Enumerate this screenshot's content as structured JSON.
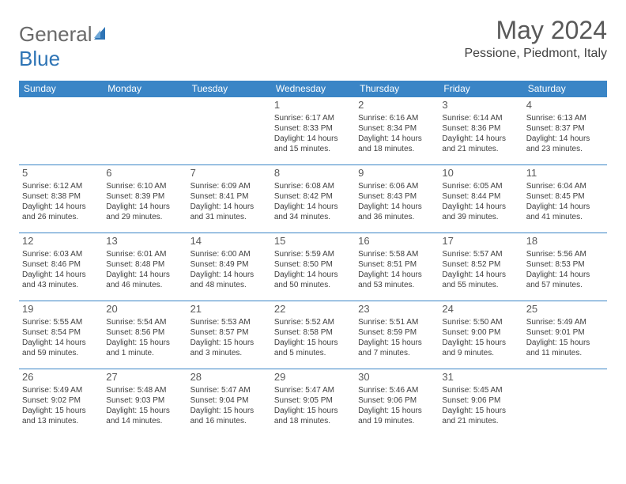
{
  "brand": {
    "part1": "General",
    "part2": "Blue"
  },
  "title": "May 2024",
  "subtitle": "Pessione, Piedmont, Italy",
  "colors": {
    "header_bg": "#3a85c6",
    "header_text": "#ffffff",
    "cell_border": "#3a85c6",
    "title_color": "#595959",
    "text_color": "#404040",
    "brand_gray": "#6a6a6a",
    "brand_blue": "#2e74b5"
  },
  "days": [
    "Sunday",
    "Monday",
    "Tuesday",
    "Wednesday",
    "Thursday",
    "Friday",
    "Saturday"
  ],
  "weeks": [
    [
      null,
      null,
      null,
      {
        "n": "1",
        "sr": "Sunrise: 6:17 AM",
        "ss": "Sunset: 8:33 PM",
        "d1": "Daylight: 14 hours",
        "d2": "and 15 minutes."
      },
      {
        "n": "2",
        "sr": "Sunrise: 6:16 AM",
        "ss": "Sunset: 8:34 PM",
        "d1": "Daylight: 14 hours",
        "d2": "and 18 minutes."
      },
      {
        "n": "3",
        "sr": "Sunrise: 6:14 AM",
        "ss": "Sunset: 8:36 PM",
        "d1": "Daylight: 14 hours",
        "d2": "and 21 minutes."
      },
      {
        "n": "4",
        "sr": "Sunrise: 6:13 AM",
        "ss": "Sunset: 8:37 PM",
        "d1": "Daylight: 14 hours",
        "d2": "and 23 minutes."
      }
    ],
    [
      {
        "n": "5",
        "sr": "Sunrise: 6:12 AM",
        "ss": "Sunset: 8:38 PM",
        "d1": "Daylight: 14 hours",
        "d2": "and 26 minutes."
      },
      {
        "n": "6",
        "sr": "Sunrise: 6:10 AM",
        "ss": "Sunset: 8:39 PM",
        "d1": "Daylight: 14 hours",
        "d2": "and 29 minutes."
      },
      {
        "n": "7",
        "sr": "Sunrise: 6:09 AM",
        "ss": "Sunset: 8:41 PM",
        "d1": "Daylight: 14 hours",
        "d2": "and 31 minutes."
      },
      {
        "n": "8",
        "sr": "Sunrise: 6:08 AM",
        "ss": "Sunset: 8:42 PM",
        "d1": "Daylight: 14 hours",
        "d2": "and 34 minutes."
      },
      {
        "n": "9",
        "sr": "Sunrise: 6:06 AM",
        "ss": "Sunset: 8:43 PM",
        "d1": "Daylight: 14 hours",
        "d2": "and 36 minutes."
      },
      {
        "n": "10",
        "sr": "Sunrise: 6:05 AM",
        "ss": "Sunset: 8:44 PM",
        "d1": "Daylight: 14 hours",
        "d2": "and 39 minutes."
      },
      {
        "n": "11",
        "sr": "Sunrise: 6:04 AM",
        "ss": "Sunset: 8:45 PM",
        "d1": "Daylight: 14 hours",
        "d2": "and 41 minutes."
      }
    ],
    [
      {
        "n": "12",
        "sr": "Sunrise: 6:03 AM",
        "ss": "Sunset: 8:46 PM",
        "d1": "Daylight: 14 hours",
        "d2": "and 43 minutes."
      },
      {
        "n": "13",
        "sr": "Sunrise: 6:01 AM",
        "ss": "Sunset: 8:48 PM",
        "d1": "Daylight: 14 hours",
        "d2": "and 46 minutes."
      },
      {
        "n": "14",
        "sr": "Sunrise: 6:00 AM",
        "ss": "Sunset: 8:49 PM",
        "d1": "Daylight: 14 hours",
        "d2": "and 48 minutes."
      },
      {
        "n": "15",
        "sr": "Sunrise: 5:59 AM",
        "ss": "Sunset: 8:50 PM",
        "d1": "Daylight: 14 hours",
        "d2": "and 50 minutes."
      },
      {
        "n": "16",
        "sr": "Sunrise: 5:58 AM",
        "ss": "Sunset: 8:51 PM",
        "d1": "Daylight: 14 hours",
        "d2": "and 53 minutes."
      },
      {
        "n": "17",
        "sr": "Sunrise: 5:57 AM",
        "ss": "Sunset: 8:52 PM",
        "d1": "Daylight: 14 hours",
        "d2": "and 55 minutes."
      },
      {
        "n": "18",
        "sr": "Sunrise: 5:56 AM",
        "ss": "Sunset: 8:53 PM",
        "d1": "Daylight: 14 hours",
        "d2": "and 57 minutes."
      }
    ],
    [
      {
        "n": "19",
        "sr": "Sunrise: 5:55 AM",
        "ss": "Sunset: 8:54 PM",
        "d1": "Daylight: 14 hours",
        "d2": "and 59 minutes."
      },
      {
        "n": "20",
        "sr": "Sunrise: 5:54 AM",
        "ss": "Sunset: 8:56 PM",
        "d1": "Daylight: 15 hours",
        "d2": "and 1 minute."
      },
      {
        "n": "21",
        "sr": "Sunrise: 5:53 AM",
        "ss": "Sunset: 8:57 PM",
        "d1": "Daylight: 15 hours",
        "d2": "and 3 minutes."
      },
      {
        "n": "22",
        "sr": "Sunrise: 5:52 AM",
        "ss": "Sunset: 8:58 PM",
        "d1": "Daylight: 15 hours",
        "d2": "and 5 minutes."
      },
      {
        "n": "23",
        "sr": "Sunrise: 5:51 AM",
        "ss": "Sunset: 8:59 PM",
        "d1": "Daylight: 15 hours",
        "d2": "and 7 minutes."
      },
      {
        "n": "24",
        "sr": "Sunrise: 5:50 AM",
        "ss": "Sunset: 9:00 PM",
        "d1": "Daylight: 15 hours",
        "d2": "and 9 minutes."
      },
      {
        "n": "25",
        "sr": "Sunrise: 5:49 AM",
        "ss": "Sunset: 9:01 PM",
        "d1": "Daylight: 15 hours",
        "d2": "and 11 minutes."
      }
    ],
    [
      {
        "n": "26",
        "sr": "Sunrise: 5:49 AM",
        "ss": "Sunset: 9:02 PM",
        "d1": "Daylight: 15 hours",
        "d2": "and 13 minutes."
      },
      {
        "n": "27",
        "sr": "Sunrise: 5:48 AM",
        "ss": "Sunset: 9:03 PM",
        "d1": "Daylight: 15 hours",
        "d2": "and 14 minutes."
      },
      {
        "n": "28",
        "sr": "Sunrise: 5:47 AM",
        "ss": "Sunset: 9:04 PM",
        "d1": "Daylight: 15 hours",
        "d2": "and 16 minutes."
      },
      {
        "n": "29",
        "sr": "Sunrise: 5:47 AM",
        "ss": "Sunset: 9:05 PM",
        "d1": "Daylight: 15 hours",
        "d2": "and 18 minutes."
      },
      {
        "n": "30",
        "sr": "Sunrise: 5:46 AM",
        "ss": "Sunset: 9:06 PM",
        "d1": "Daylight: 15 hours",
        "d2": "and 19 minutes."
      },
      {
        "n": "31",
        "sr": "Sunrise: 5:45 AM",
        "ss": "Sunset: 9:06 PM",
        "d1": "Daylight: 15 hours",
        "d2": "and 21 minutes."
      },
      null
    ]
  ]
}
